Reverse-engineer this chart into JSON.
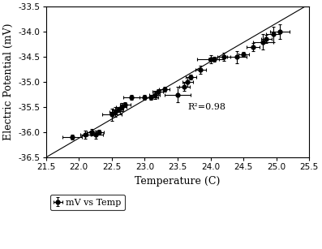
{
  "x": [
    21.9,
    22.1,
    22.2,
    22.25,
    22.3,
    22.5,
    22.55,
    22.6,
    22.65,
    22.7,
    22.8,
    23.0,
    23.1,
    23.15,
    23.2,
    23.3,
    23.5,
    23.6,
    23.65,
    23.7,
    23.85,
    24.0,
    24.05,
    24.2,
    24.4,
    24.5,
    24.65,
    24.8,
    24.85,
    24.95,
    25.05
  ],
  "y": [
    -36.1,
    -36.05,
    -36.0,
    -36.05,
    -36.0,
    -35.65,
    -35.6,
    -35.55,
    -35.5,
    -35.45,
    -35.3,
    -35.3,
    -35.3,
    -35.25,
    -35.2,
    -35.15,
    -35.25,
    -35.1,
    -35.0,
    -34.9,
    -34.75,
    -34.55,
    -34.55,
    -34.5,
    -34.5,
    -34.45,
    -34.3,
    -34.2,
    -34.15,
    -34.05,
    -34.0
  ],
  "xerr": [
    0.15,
    0.08,
    0.08,
    0.12,
    0.08,
    0.15,
    0.08,
    0.08,
    0.08,
    0.08,
    0.12,
    0.2,
    0.08,
    0.08,
    0.08,
    0.08,
    0.2,
    0.08,
    0.08,
    0.08,
    0.08,
    0.2,
    0.08,
    0.1,
    0.15,
    0.08,
    0.1,
    0.15,
    0.08,
    0.1,
    0.15
  ],
  "yerr": [
    0.05,
    0.08,
    0.06,
    0.08,
    0.05,
    0.12,
    0.1,
    0.05,
    0.08,
    0.05,
    0.05,
    0.05,
    0.05,
    0.08,
    0.05,
    0.05,
    0.15,
    0.08,
    0.1,
    0.05,
    0.08,
    0.08,
    0.05,
    0.08,
    0.12,
    0.05,
    0.08,
    0.15,
    0.08,
    0.15,
    0.15
  ],
  "fit_x": [
    21.5,
    25.5
  ],
  "fit_y": [
    -36.5,
    -33.45
  ],
  "xlabel": "Temperature (C)",
  "ylabel": "Electric Potential (mV)",
  "xlim": [
    21.5,
    25.5
  ],
  "ylim": [
    -36.5,
    -33.5
  ],
  "xticks": [
    21.5,
    22.0,
    22.5,
    23.0,
    23.5,
    24.0,
    24.5,
    25.0,
    25.5
  ],
  "xtick_labels": [
    "21.5",
    "22.0",
    "22.5",
    "23.0",
    "23.5",
    "24.0",
    "24.5",
    "25.0",
    "25.5"
  ],
  "yticks": [
    -36.5,
    -36.0,
    -35.5,
    -35.0,
    -34.5,
    -34.0,
    -33.5
  ],
  "ytick_labels": [
    "-36.5",
    "-36.0",
    "-35.5",
    "-35.0",
    "-34.5",
    "-34.0",
    "-33.5"
  ],
  "r_squared_text": "R²=0.98",
  "r_squared_x": 23.65,
  "r_squared_y": -35.5,
  "legend_label": "mV vs Temp",
  "marker_color": "black",
  "line_style": "-",
  "line_color": "black",
  "ecolor": "black",
  "figsize": [
    3.97,
    3.07
  ],
  "dpi": 100
}
